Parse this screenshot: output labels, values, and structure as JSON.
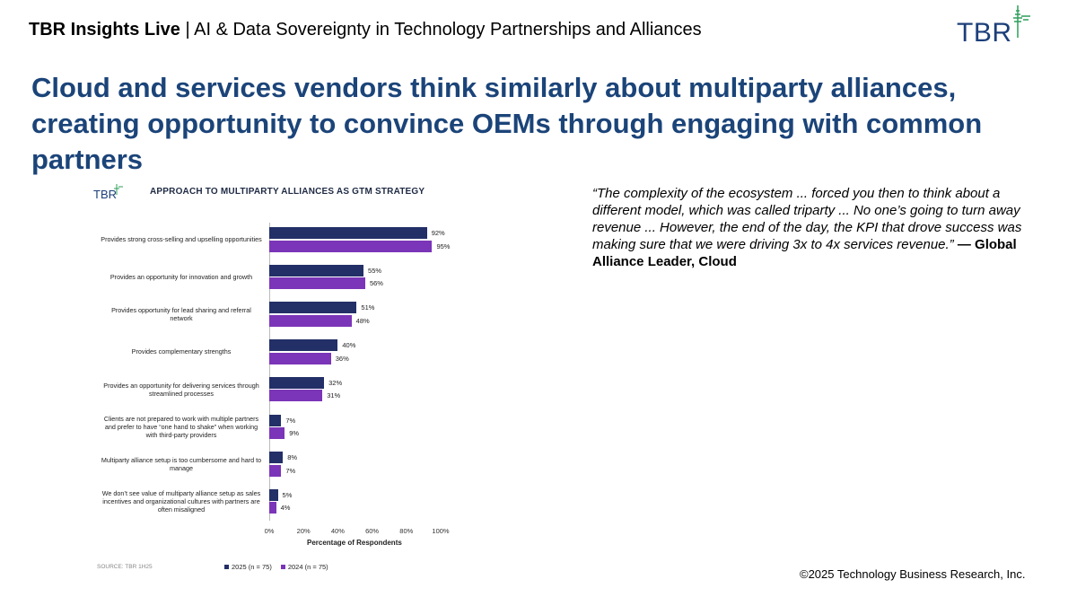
{
  "header": {
    "brand": "TBR Insights Live",
    "separator": " | ",
    "subtitle": "AI & Data Sovereignty in Technology Partnerships and Alliances"
  },
  "logo": {
    "text": "TBR"
  },
  "title": "Cloud and services vendors think similarly about multiparty alliances, creating opportunity to convince OEMs through engaging with common partners",
  "quote": {
    "text": "“The complexity of the ecosystem ... forced you then to think about a different model, which was called triparty ... No one’s going to turn away revenue ... However, the end of the day, the KPI that drove success was making sure that we were driving 3x to 4x services revenue.”",
    "attribution": " — Global Alliance Leader, Cloud"
  },
  "chart_data": {
    "type": "bar",
    "orientation": "horizontal",
    "title": "APPROACH TO MULTIPARTY ALLIANCES AS GTM STRATEGY",
    "logo_text": "TBR",
    "categories": [
      "Provides strong cross-selling and upselling opportunities",
      "Provides an opportunity for innovation and growth",
      "Provides opportunity for lead sharing and referral network",
      "Provides complementary strengths",
      "Provides an opportunity for delivering services through streamlined processes",
      "Clients are not prepared to work with multiple partners and prefer to have “one hand to shake” when working with third-party providers",
      "Multiparty alliance setup is too cumbersome and hard to manage",
      "We don’t see value of multiparty alliance setup as sales incentives and organizational cultures with partners are often misaligned"
    ],
    "series": [
      {
        "name": "2025 (n = 75)",
        "color": "#232f67",
        "values": [
          92,
          55,
          51,
          40,
          32,
          7,
          8,
          5
        ]
      },
      {
        "name": "2024 (n = 75)",
        "color": "#7b35b8",
        "values": [
          95,
          56,
          48,
          36,
          31,
          9,
          7,
          4
        ]
      }
    ],
    "xlabel": "Percentage of Respondents",
    "xlim": [
      0,
      100
    ],
    "xticks": [
      "0%",
      "20%",
      "40%",
      "60%",
      "80%",
      "100%"
    ],
    "value_suffix": "%",
    "source": "SOURCE: TBR 1H25",
    "legend_position": "bottom"
  },
  "copyright": "©2025 Technology Business Research, Inc."
}
